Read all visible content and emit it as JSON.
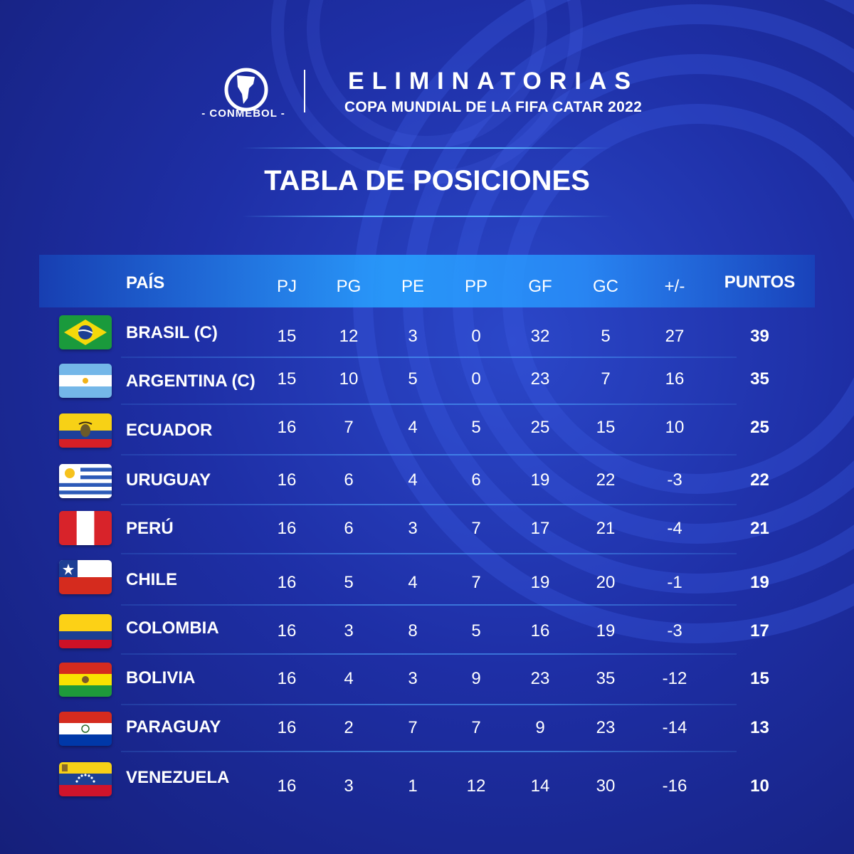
{
  "header": {
    "logo_text": "- CONMEBOL -",
    "title_line1": "ELIMINATORIAS",
    "title_line2": "COPA MUNDIAL DE LA FIFA CATAR 2022"
  },
  "main_title": "TABLA DE POSICIONES",
  "columns": {
    "team": "PAÍS",
    "pj": "PJ",
    "pg": "PG",
    "pe": "PE",
    "pp": "PP",
    "gf": "GF",
    "gc": "GC",
    "diff": "+/-",
    "points": "PUNTOS"
  },
  "rows": [
    {
      "team": "BRASIL (C)",
      "flag": "brazil-flag",
      "pj": "15",
      "pg": "12",
      "pe": "3",
      "pp": "0",
      "gf": "32",
      "gc": "5",
      "diff": "27",
      "points": "39"
    },
    {
      "team": "ARGENTINA (C)",
      "flag": "argentina-flag",
      "pj": "15",
      "pg": "10",
      "pe": "5",
      "pp": "0",
      "gf": "23",
      "gc": "7",
      "diff": "16",
      "points": "35"
    },
    {
      "team": "ECUADOR",
      "flag": "ecuador-flag",
      "pj": "16",
      "pg": "7",
      "pe": "4",
      "pp": "5",
      "gf": "25",
      "gc": "15",
      "diff": "10",
      "points": "25"
    },
    {
      "team": "URUGUAY",
      "flag": "uruguay-flag",
      "pj": "16",
      "pg": "6",
      "pe": "4",
      "pp": "6",
      "gf": "19",
      "gc": "22",
      "diff": "-3",
      "points": "22"
    },
    {
      "team": "PERÚ",
      "flag": "peru-flag",
      "pj": "16",
      "pg": "6",
      "pe": "3",
      "pp": "7",
      "gf": "17",
      "gc": "21",
      "diff": "-4",
      "points": "21"
    },
    {
      "team": "CHILE",
      "flag": "chile-flag",
      "pj": "16",
      "pg": "5",
      "pe": "4",
      "pp": "7",
      "gf": "19",
      "gc": "20",
      "diff": "-1",
      "points": "19"
    },
    {
      "team": "COLOMBIA",
      "flag": "colombia-flag",
      "pj": "16",
      "pg": "3",
      "pe": "8",
      "pp": "5",
      "gf": "16",
      "gc": "19",
      "diff": "-3",
      "points": "17"
    },
    {
      "team": "BOLIVIA",
      "flag": "bolivia-flag",
      "pj": "16",
      "pg": "4",
      "pe": "3",
      "pp": "9",
      "gf": "23",
      "gc": "35",
      "diff": "-12",
      "points": "15"
    },
    {
      "team": "PARAGUAY",
      "flag": "paraguay-flag",
      "pj": "16",
      "pg": "2",
      "pe": "7",
      "pp": "7",
      "gf": "9",
      "gc": "23",
      "diff": "-14",
      "points": "13"
    },
    {
      "team": "VENEZUELA",
      "flag": "venezuela-flag",
      "pj": "16",
      "pg": "3",
      "pe": "1",
      "pp": "12",
      "gf": "14",
      "gc": "30",
      "diff": "-16",
      "points": "10"
    }
  ],
  "colors": {
    "background": "#1e2fa6",
    "header_band": "#2aa0ff",
    "accent_line": "#5ab8ff",
    "text": "#ffffff"
  }
}
